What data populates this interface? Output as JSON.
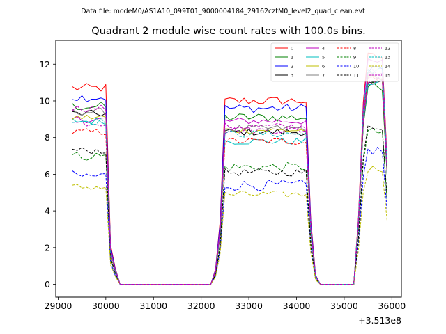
{
  "suptitle": "Data file: modeM0/AS1A10_099T01_9000004184_29162cztM0_level2_quad_clean.evt",
  "chart_data": {
    "type": "line",
    "title": "Quadrant 2 module wise count rates with 100.0s bins.",
    "xlabel": "",
    "ylabel": "",
    "x_offset_label": "+3.513e8",
    "xlim": [
      28950,
      36200
    ],
    "ylim": [
      -0.7,
      13.3
    ],
    "xticks": [
      29000,
      30000,
      31000,
      32000,
      33000,
      34000,
      35000,
      36000
    ],
    "yticks": [
      0,
      2,
      4,
      6,
      8,
      10,
      12
    ],
    "grid": false,
    "legend_position": "top-right",
    "bin_seconds": 100,
    "x_start": 29300,
    "x_step": 100,
    "num_bins": 67,
    "segments": [
      {
        "plateau_start_bin": 0,
        "plateau_end_bin": 7,
        "zero_start_bin": 10,
        "zero_end_bin": 29
      },
      {
        "plateau_start_bin": 32,
        "plateau_end_bin": 49,
        "zero_start_bin": 52,
        "zero_end_bin": 59
      },
      {
        "plateau_start_bin": 62,
        "plateau_end_bin": 66
      }
    ],
    "series": [
      {
        "name": "0",
        "color": "#ff0000",
        "style": "solid",
        "level1": 10.7,
        "level2": 10.0,
        "level3": 12.4,
        "noise": 0.25
      },
      {
        "name": "1",
        "color": "#008000",
        "style": "solid",
        "level1": 9.7,
        "level2": 9.1,
        "level3": 10.8,
        "noise": 0.25
      },
      {
        "name": "2",
        "color": "#0000ff",
        "style": "solid",
        "level1": 10.2,
        "level2": 9.6,
        "level3": 11.8,
        "noise": 0.25
      },
      {
        "name": "3",
        "color": "#000000",
        "style": "solid",
        "level1": 9.3,
        "level2": 8.3,
        "level3": 10.9,
        "noise": 0.2
      },
      {
        "name": "4",
        "color": "#bf00bf",
        "style": "solid",
        "level1": 9.0,
        "level2": 8.9,
        "level3": 12.1,
        "noise": 0.2
      },
      {
        "name": "5",
        "color": "#00bfbf",
        "style": "solid",
        "level1": 8.9,
        "level2": 7.8,
        "level3": 11.0,
        "noise": 0.2
      },
      {
        "name": "6",
        "color": "#bfbf00",
        "style": "solid",
        "level1": 9.1,
        "level2": 8.4,
        "level3": 11.2,
        "noise": 0.2
      },
      {
        "name": "7",
        "color": "#808080",
        "style": "solid",
        "level1": 9.4,
        "level2": 8.5,
        "level3": 11.4,
        "noise": 0.2
      },
      {
        "name": "8",
        "color": "#ff0000",
        "style": "dashed",
        "level1": 8.3,
        "level2": 7.8,
        "level3": 11.3,
        "noise": 0.2
      },
      {
        "name": "9",
        "color": "#008000",
        "style": "dashed",
        "level1": 7.0,
        "level2": 6.4,
        "level3": 8.3,
        "noise": 0.25
      },
      {
        "name": "10",
        "color": "#0000ff",
        "style": "dashed",
        "level1": 5.9,
        "level2": 5.4,
        "level3": 7.3,
        "noise": 0.3
      },
      {
        "name": "11",
        "color": "#000000",
        "style": "dashed",
        "level1": 7.3,
        "level2": 6.1,
        "level3": 8.6,
        "noise": 0.2
      },
      {
        "name": "12",
        "color": "#bf00bf",
        "style": "dashed",
        "level1": 8.8,
        "level2": 8.4,
        "level3": 11.6,
        "noise": 0.2
      },
      {
        "name": "13",
        "color": "#00bfbf",
        "style": "dashed",
        "level1": 8.9,
        "level2": 8.2,
        "level3": 11.7,
        "noise": 0.2
      },
      {
        "name": "14",
        "color": "#bfbf00",
        "style": "dashed",
        "level1": 5.3,
        "level2": 4.9,
        "level3": 6.3,
        "noise": 0.2
      },
      {
        "name": "15",
        "color": "#bf00bf",
        "style": "dashed",
        "level1": 9.6,
        "level2": 8.6,
        "level3": 11.1,
        "noise": 0.2
      }
    ]
  }
}
